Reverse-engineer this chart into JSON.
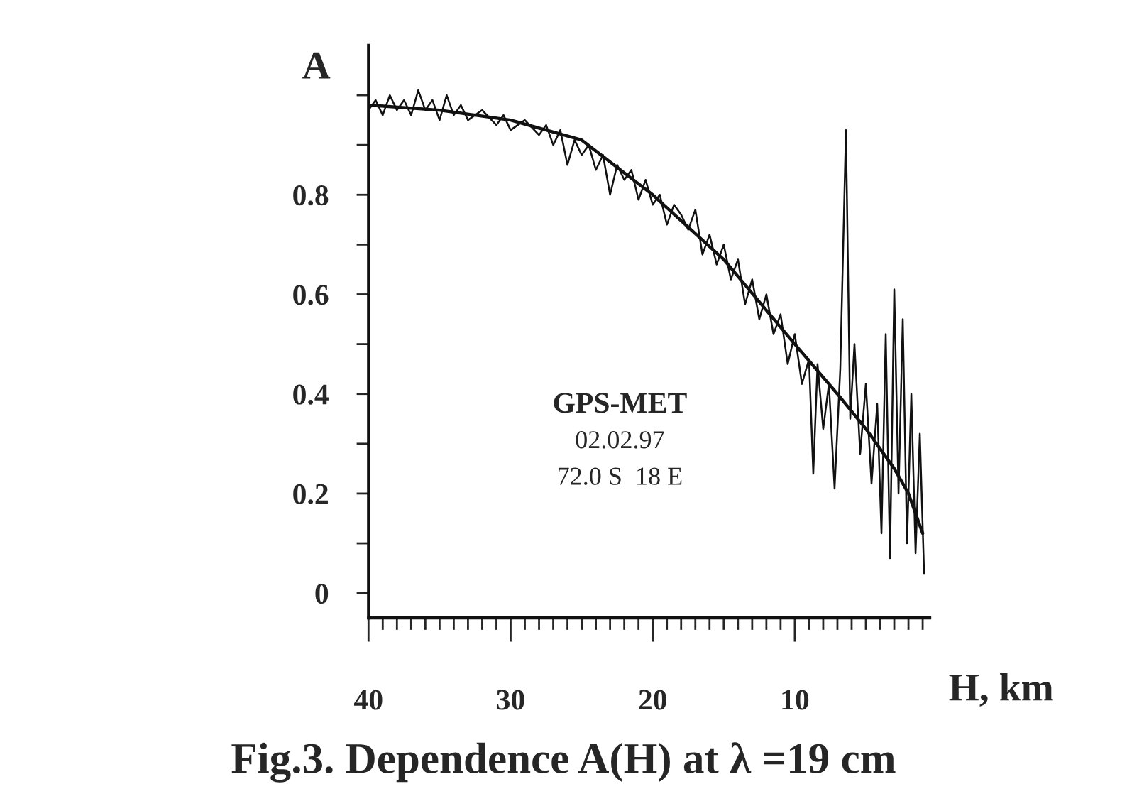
{
  "chart_data": {
    "type": "line",
    "title": "Fig.3. Dependence A(H) at λ =19 cm",
    "xlabel": "H, km",
    "ylabel": "A",
    "annotations": [
      "GPS-MET",
      "02.02.97",
      "72.0 S  18 E"
    ],
    "xlim": [
      40,
      0.5
    ],
    "ylim": [
      -0.05,
      1.1
    ],
    "xticks": [
      40,
      {
        "value": 39,
        "label": null
      },
      {
        "value": 38,
        "label": null
      },
      {
        "value": 37,
        "label": null
      },
      {
        "value": 36,
        "label": null
      },
      {
        "value": 35,
        "label": null
      },
      {
        "value": 34,
        "label": null
      },
      {
        "value": 33,
        "label": null
      },
      {
        "value": 32,
        "label": null
      },
      {
        "value": 31,
        "label": null
      },
      30,
      {
        "value": 29,
        "label": null
      },
      {
        "value": 28,
        "label": null
      },
      {
        "value": 27,
        "label": null
      },
      {
        "value": 26,
        "label": null
      },
      {
        "value": 25,
        "label": null
      },
      {
        "value": 24,
        "label": null
      },
      {
        "value": 23,
        "label": null
      },
      {
        "value": 22,
        "label": null
      },
      {
        "value": 21,
        "label": null
      },
      20,
      {
        "value": 19,
        "label": null
      },
      {
        "value": 18,
        "label": null
      },
      {
        "value": 17,
        "label": null
      },
      {
        "value": 16,
        "label": null
      },
      {
        "value": 15,
        "label": null
      },
      {
        "value": 14,
        "label": null
      },
      {
        "value": 13,
        "label": null
      },
      {
        "value": 12,
        "label": null
      },
      {
        "value": 11,
        "label": null
      },
      10,
      {
        "value": 9,
        "label": null
      },
      {
        "value": 8,
        "label": null
      },
      {
        "value": 7,
        "label": null
      },
      {
        "value": 6,
        "label": null
      },
      {
        "value": 5,
        "label": null
      },
      {
        "value": 4,
        "label": null
      },
      {
        "value": 3,
        "label": null
      },
      {
        "value": 2,
        "label": null
      },
      {
        "value": 1,
        "label": null
      }
    ],
    "yticks": [
      0,
      {
        "value": 0.1,
        "label": null
      },
      0.2,
      {
        "value": 0.3,
        "label": null
      },
      0.4,
      {
        "value": 0.5,
        "label": null
      },
      0.6,
      {
        "value": 0.7,
        "label": null
      },
      0.8,
      {
        "value": 0.9,
        "label": null
      },
      {
        "value": 1.0,
        "label": null
      }
    ],
    "grid": false,
    "legend": false,
    "marker": "none",
    "line_style": "solid",
    "series": [
      {
        "color": "#111111",
        "x": [
          40,
          39.5,
          39,
          38.5,
          38,
          37.5,
          37,
          36.5,
          36,
          35.5,
          35,
          34.5,
          34,
          33.5,
          33,
          32,
          31,
          30.5,
          30,
          29,
          28,
          27.5,
          27,
          26.5,
          26,
          25.5,
          25,
          24.5,
          24,
          23.5,
          23,
          22.5,
          22,
          21.5,
          21,
          20.5,
          20,
          19.5,
          19,
          18.5,
          18,
          17.5,
          17,
          16.5,
          16,
          15.5,
          15,
          14.5,
          14,
          13.5,
          13,
          12.5,
          12,
          11.5,
          11,
          10.5,
          10,
          9.5,
          9,
          8.7,
          8.4,
          8,
          7.6,
          7.2,
          6.8,
          6.4,
          6.1,
          5.8,
          5.4,
          5,
          4.6,
          4.2,
          3.9,
          3.6,
          3.3,
          3.0,
          2.7,
          2.4,
          2.1,
          1.8,
          1.5,
          1.2,
          0.9
        ],
        "values": [
          0.97,
          0.99,
          0.96,
          1.0,
          0.97,
          0.99,
          0.96,
          1.01,
          0.97,
          0.99,
          0.95,
          1.0,
          0.96,
          0.98,
          0.95,
          0.97,
          0.94,
          0.96,
          0.93,
          0.95,
          0.92,
          0.94,
          0.9,
          0.93,
          0.86,
          0.91,
          0.88,
          0.9,
          0.85,
          0.88,
          0.8,
          0.86,
          0.83,
          0.85,
          0.79,
          0.83,
          0.78,
          0.8,
          0.74,
          0.78,
          0.76,
          0.73,
          0.77,
          0.68,
          0.72,
          0.66,
          0.7,
          0.63,
          0.67,
          0.58,
          0.63,
          0.55,
          0.6,
          0.52,
          0.56,
          0.46,
          0.52,
          0.42,
          0.47,
          0.24,
          0.46,
          0.33,
          0.42,
          0.21,
          0.45,
          0.93,
          0.35,
          0.5,
          0.28,
          0.42,
          0.22,
          0.38,
          0.12,
          0.52,
          0.07,
          0.61,
          0.2,
          0.55,
          0.1,
          0.4,
          0.08,
          0.32,
          0.04
        ]
      },
      {
        "color": "#111111",
        "x": [
          40,
          35,
          30,
          25,
          20,
          15,
          10,
          7,
          5,
          3,
          2,
          1
        ],
        "values": [
          0.98,
          0.97,
          0.95,
          0.91,
          0.8,
          0.67,
          0.5,
          0.4,
          0.33,
          0.25,
          0.2,
          0.12
        ]
      }
    ]
  }
}
